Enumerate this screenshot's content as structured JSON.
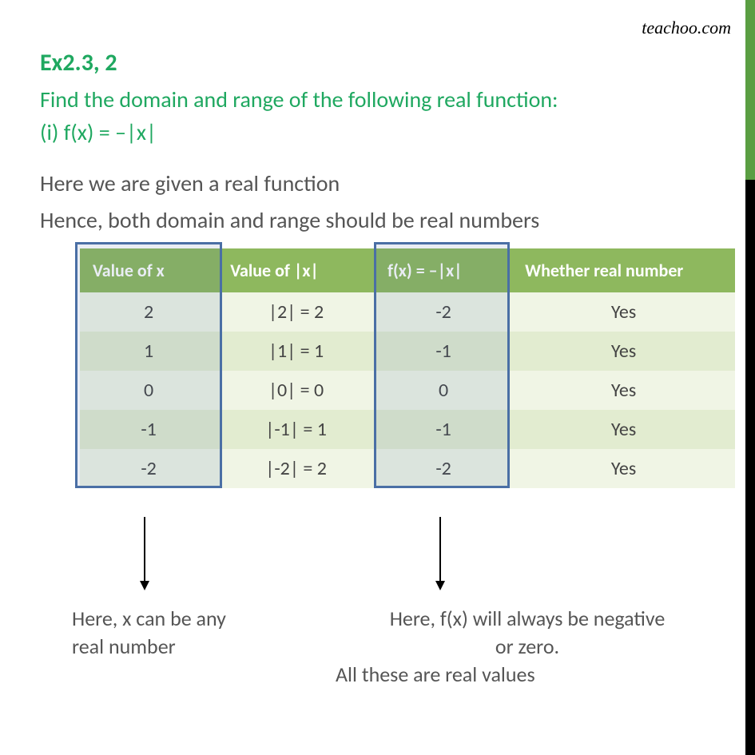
{
  "brand": "teachoo.com",
  "title": "Ex2.3,  2",
  "subtitle": "Find the domain and range of the following real function:",
  "subnum": "(i)    f(x) = –|x|",
  "body1": "Here we are given a real function",
  "body2": "Hence, both domain and range should be real numbers",
  "table": {
    "headers": [
      "Value of x",
      "Value of |x|",
      "f(x) = –|x|",
      "Whether real number"
    ],
    "rows": [
      {
        "x": "2",
        "abs": "|2| = 2",
        "fx": "-2",
        "real": "Yes",
        "stripe": "odd"
      },
      {
        "x": "1",
        "abs": "|1| = 1",
        "fx": "-1",
        "real": "Yes",
        "stripe": "even"
      },
      {
        "x": "0",
        "abs": "|0| = 0",
        "fx": "0",
        "real": "Yes",
        "stripe": "odd"
      },
      {
        "x": "-1",
        "abs": "|-1| = 1",
        "fx": "-1",
        "real": "Yes",
        "stripe": "even"
      },
      {
        "x": "-2",
        "abs": "|-2| = 2",
        "fx": "-2",
        "real": "Yes",
        "stripe": "odd"
      }
    ]
  },
  "note1a": "Here, x can be any",
  "note1b": "real number",
  "note3a": "Here, f(x) will always be negative",
  "note3b": "or zero.",
  "note3c": "All these are real values",
  "colors": {
    "green_accent": "#1fa860",
    "table_header_bg": "#8eb85e",
    "row_odd": "#f0f5e5",
    "row_even": "#e2ecd0",
    "highlight_border": "#4a6fa5",
    "side_green": "#5a9e42"
  }
}
